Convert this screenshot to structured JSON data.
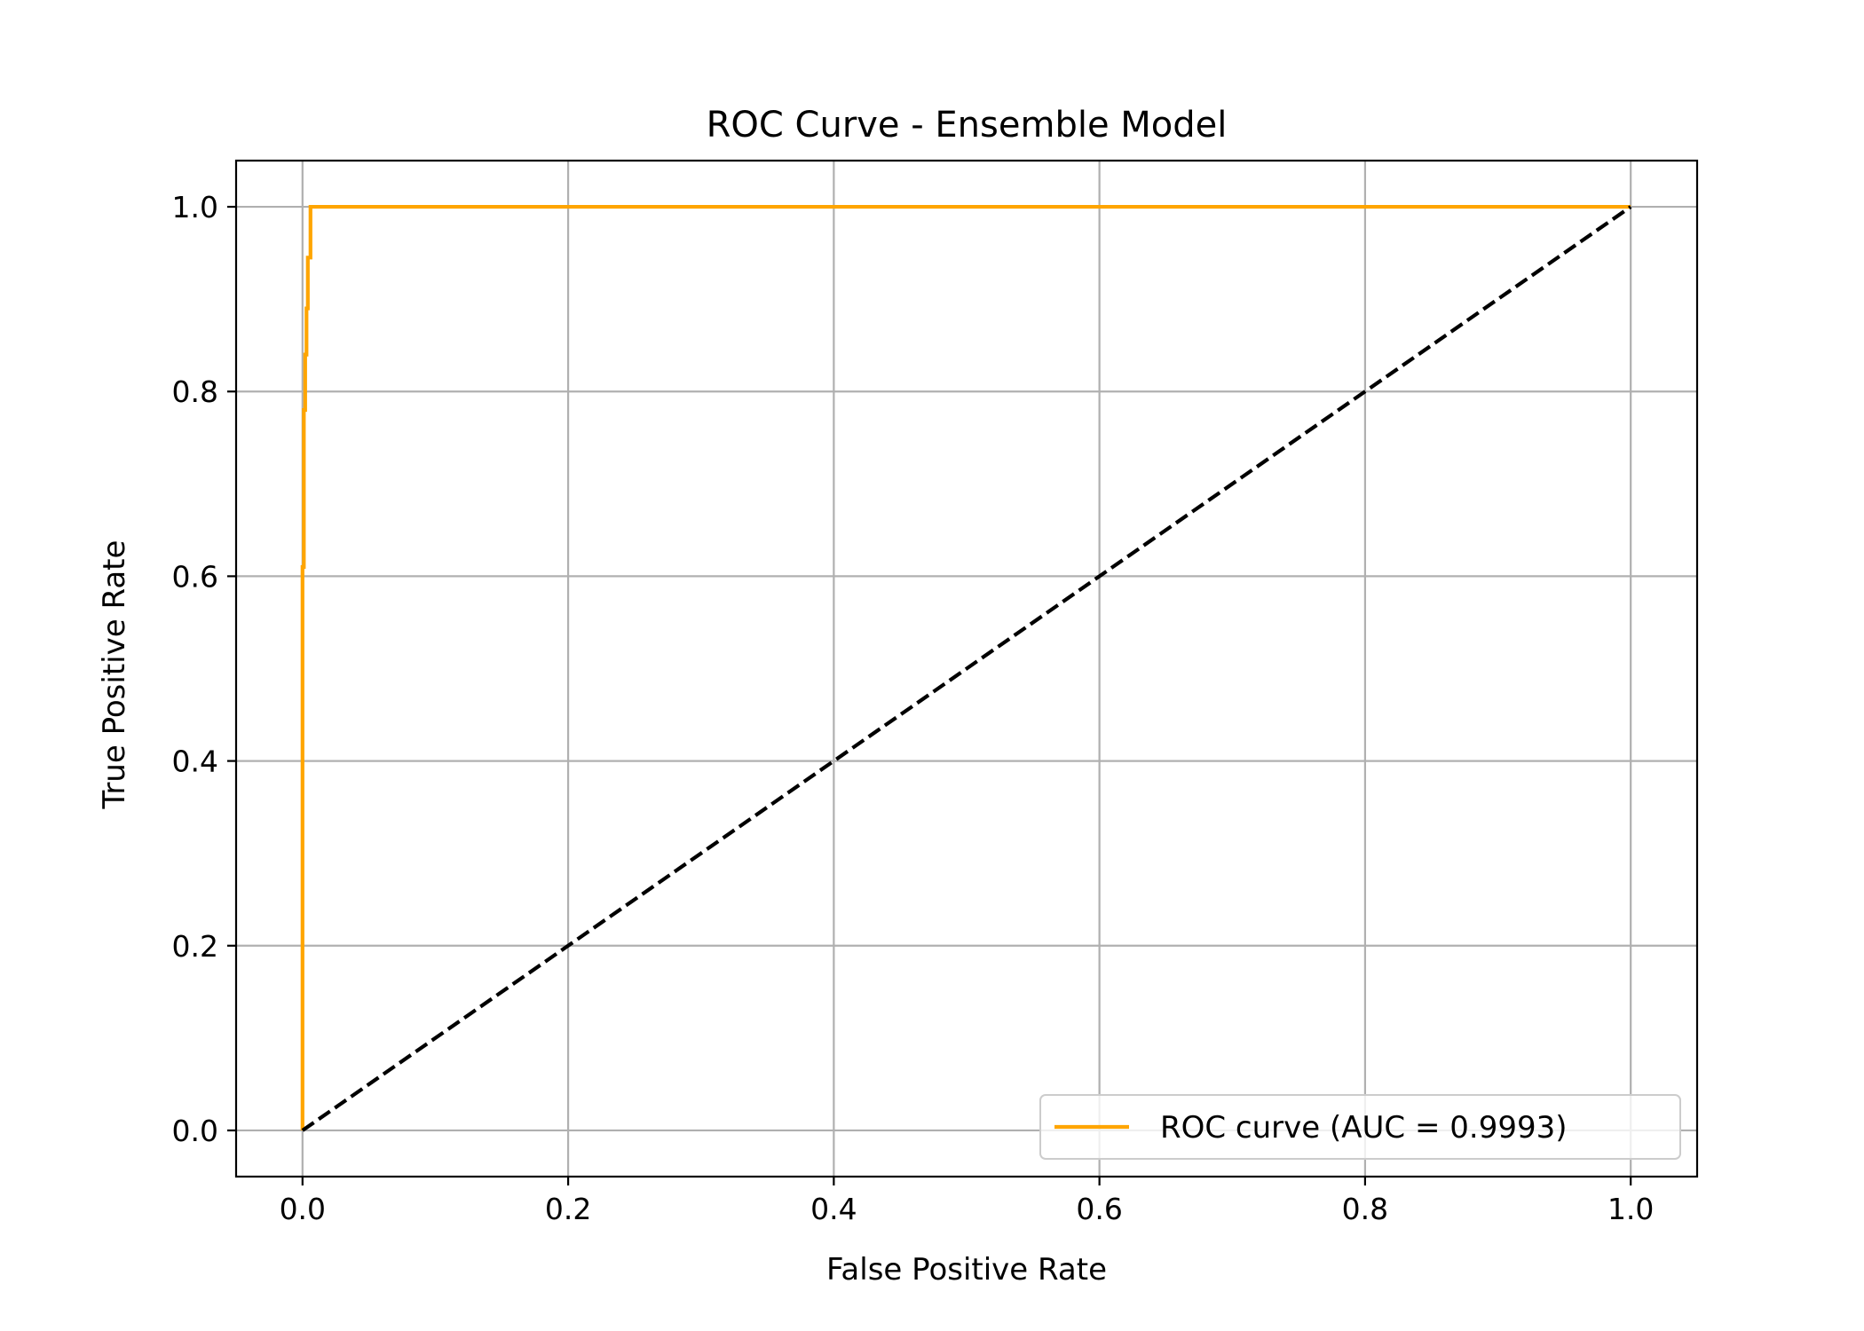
{
  "chart_data": {
    "type": "line",
    "title": "ROC Curve - Ensemble Model",
    "xlabel": "False Positive Rate",
    "ylabel": "True Positive Rate",
    "xlim": [
      -0.05,
      1.05
    ],
    "ylim": [
      -0.05,
      1.05
    ],
    "xticks": [
      0.0,
      0.2,
      0.4,
      0.6,
      0.8,
      1.0
    ],
    "yticks": [
      0.0,
      0.2,
      0.4,
      0.6,
      0.8,
      1.0
    ],
    "xtick_labels": [
      "0.0",
      "0.2",
      "0.4",
      "0.6",
      "0.8",
      "1.0"
    ],
    "ytick_labels": [
      "0.0",
      "0.2",
      "0.4",
      "0.6",
      "0.8",
      "1.0"
    ],
    "grid": true,
    "legend_position": "lower-right",
    "series": [
      {
        "name": "ROC curve (AUC = 0.9993)",
        "color": "#FFA500",
        "style": "solid",
        "x": [
          0.0,
          0.0,
          0.001,
          0.001,
          0.002,
          0.002,
          0.003,
          0.003,
          0.004,
          0.004,
          0.006,
          0.006,
          1.0
        ],
        "y": [
          0.0,
          0.61,
          0.61,
          0.78,
          0.78,
          0.84,
          0.84,
          0.89,
          0.89,
          0.945,
          0.945,
          1.0,
          1.0
        ]
      },
      {
        "color": "#000000",
        "style": "dashed",
        "x": [
          0.0,
          1.0
        ],
        "y": [
          0.0,
          1.0
        ]
      }
    ]
  }
}
